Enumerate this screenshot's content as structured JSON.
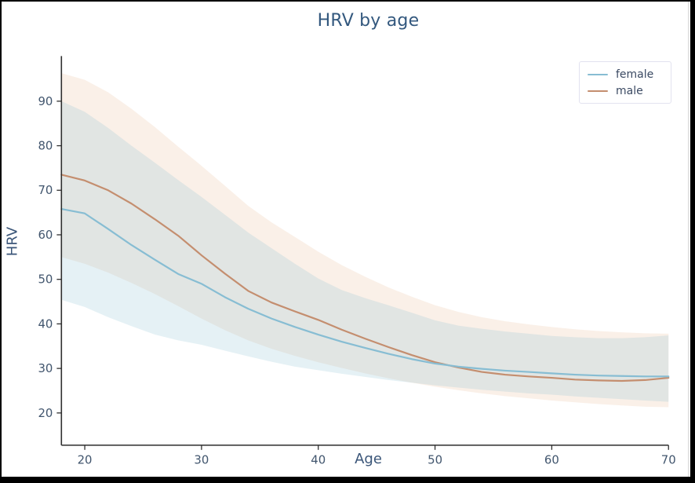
{
  "window": {
    "frame_border_color": "#000000",
    "background_color": "#ffffff"
  },
  "text_colors": {
    "title": "#33587e",
    "axis_label": "#3a5578",
    "tick_label": "#42566e",
    "legend_label": "#3b4a63",
    "spine": "#2e2e2e"
  },
  "legend": {
    "position": "upper right",
    "items": [
      {
        "label": "female",
        "color": "#87bdd3"
      },
      {
        "label": "male",
        "color": "#c48e6f"
      }
    ]
  },
  "chart_data": {
    "type": "line",
    "title": "HRV by age",
    "xlabel": "Age",
    "ylabel": "HRV",
    "grid": false,
    "legend_position": "upper right",
    "xlim": [
      18,
      70
    ],
    "ylim": [
      15,
      100
    ],
    "xticks": [
      20,
      30,
      40,
      50,
      60,
      70
    ],
    "yticks": [
      20,
      30,
      40,
      50,
      60,
      70,
      80,
      90
    ],
    "x": [
      18,
      20,
      22,
      24,
      26,
      28,
      30,
      32,
      34,
      36,
      38,
      40,
      42,
      44,
      46,
      48,
      50,
      52,
      54,
      56,
      58,
      60,
      62,
      64,
      66,
      68,
      70
    ],
    "series": [
      {
        "name": "male",
        "color": "#c48e6f",
        "band_color": "#dd9a66",
        "band_opacity": 0.15,
        "values": [
          73.5,
          72.2,
          70.0,
          67.0,
          63.5,
          59.8,
          55.4,
          51.3,
          47.4,
          44.8,
          42.8,
          40.9,
          38.7,
          36.7,
          34.8,
          33.0,
          31.4,
          30.2,
          29.2,
          28.6,
          28.2,
          27.9,
          27.5,
          27.3,
          27.2,
          27.4,
          27.9
        ],
        "band_upper": [
          96.3,
          94.8,
          92.0,
          88.3,
          84.2,
          79.8,
          75.5,
          71.0,
          66.5,
          62.8,
          59.5,
          56.2,
          53.2,
          50.6,
          48.2,
          46.1,
          44.2,
          42.7,
          41.5,
          40.6,
          39.9,
          39.3,
          38.8,
          38.4,
          38.1,
          37.9,
          37.8
        ],
        "band_lower": [
          55.0,
          53.5,
          51.5,
          49.2,
          46.7,
          44.0,
          41.2,
          38.6,
          36.3,
          34.4,
          32.8,
          31.4,
          30.1,
          28.9,
          27.8,
          26.8,
          25.9,
          25.1,
          24.4,
          23.8,
          23.3,
          22.8,
          22.4,
          22.0,
          21.7,
          21.4,
          21.3
        ]
      },
      {
        "name": "female",
        "color": "#87bdd3",
        "band_color": "#87bdd3",
        "band_opacity": 0.22,
        "values": [
          65.8,
          64.8,
          61.3,
          57.7,
          54.4,
          51.2,
          49.0,
          46.0,
          43.4,
          41.2,
          39.3,
          37.6,
          36.0,
          34.6,
          33.3,
          32.1,
          31.1,
          30.4,
          29.9,
          29.5,
          29.2,
          28.9,
          28.6,
          28.4,
          28.3,
          28.2,
          28.2
        ],
        "band_upper": [
          90.0,
          87.6,
          84.0,
          80.0,
          76.2,
          72.3,
          68.5,
          64.5,
          60.5,
          57.0,
          53.5,
          50.2,
          47.6,
          45.8,
          44.2,
          42.5,
          40.8,
          39.6,
          38.9,
          38.3,
          37.8,
          37.3,
          37.0,
          36.8,
          36.8,
          37.0,
          37.4
        ],
        "band_lower": [
          45.4,
          43.8,
          41.5,
          39.5,
          37.6,
          36.3,
          35.3,
          34.0,
          32.7,
          31.5,
          30.4,
          29.6,
          28.8,
          28.1,
          27.4,
          26.8,
          26.2,
          25.7,
          25.2,
          24.8,
          24.4,
          24.1,
          23.7,
          23.4,
          23.1,
          22.8,
          22.5
        ]
      }
    ]
  }
}
